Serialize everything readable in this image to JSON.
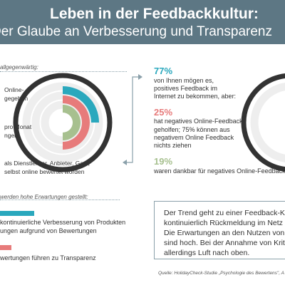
{
  "title": {
    "line1": "Leben in der Feedbackkultur:",
    "line2": "Der Glaube an Verbesserung und Transparenz"
  },
  "left_section": {
    "label": "allgegenwärtig:",
    "items": [
      {
        "line1": "Online-",
        "line2": "gegeben"
      },
      {
        "line1": "pro Monat",
        "line2": "ngen"
      },
      {
        "line1": "als Dienstleister, Anbieter, Gast,",
        "line2": "selbst online bewertet worden"
      }
    ]
  },
  "stats": [
    {
      "percent": "77%",
      "color": "#2aa8bd",
      "lines": [
        "von Ihnen mögen es,",
        "positives Feedback im",
        "Internet zu bekommen, aber:"
      ]
    },
    {
      "percent": "25%",
      "color": "#e77b7b",
      "lines": [
        "hat negatives Online-Feedback",
        "geholfen; 75% können aus",
        "negativem Online Feedback",
        "nichts ziehen"
      ]
    },
    {
      "percent": "19%",
      "color": "#a7c08f",
      "lines": [
        "waren dankbar für negatives Online-Feedback"
      ]
    }
  ],
  "expectations": {
    "label": "werden hohe Erwartungen gestellt:",
    "items": [
      {
        "lines": [
          "kontinuierliche Verbesserung von Produkten",
          "ungen aufgrund von Bewertungen"
        ],
        "color": "#2aa8bd"
      },
      {
        "lines": [
          "wertungen führen zu Transparenz"
        ],
        "color": "#e77b7b"
      }
    ]
  },
  "trend_box": {
    "lines": [
      "Der Trend geht zu einer Feedback-Ku",
      "kontinuierlich Rückmeldung im Netz",
      "Die Erwartungen an den Nutzen von",
      "sind hoch. Bei der Annahme von Krit",
      "allerdings Luft nach oben."
    ]
  },
  "source": "Quelle: HolidayCheck-Studie „Psychologie des Bewertens\", A",
  "colors": {
    "header": "#5d7784",
    "teal": "#2aa8bd",
    "pink": "#e77b7b",
    "green": "#a7c08f",
    "gray_rule": "#8aa0aa"
  }
}
